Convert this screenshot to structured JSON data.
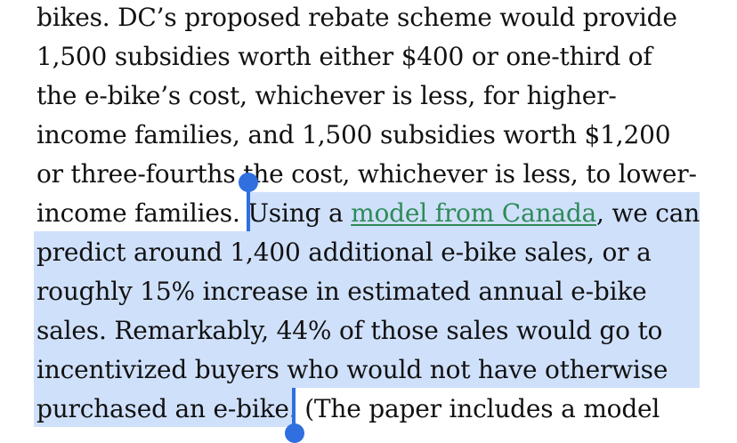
{
  "article": {
    "lines": [
      "bikes. DC’s proposed rebate scheme would provide",
      "1,500 subsidies worth either $400 or one-third of",
      "the e-bike’s cost, whichever is less, for higher-",
      "income families, and 1,500 subsidies worth $1,200",
      "or three-fourths the cost, whichever is less, to lower-"
    ],
    "line6_pre": "income families. ",
    "line6_sel": "Using a ",
    "link_text": "model from Canada",
    "line6_post": ", we can",
    "selected_lines": [
      "predict around 1,400 additional e-bike sales, or a",
      "roughly 15% increase in estimated annual e-bike",
      "sales. Remarkably, 44% of those sales would go to",
      "incentivized buyers who would not have otherwise"
    ],
    "line11_sel": "purchased an e-bike.",
    "line11_post": " (The paper includes a model"
  },
  "colors": {
    "selection": "#cfe0fb",
    "handle": "#2f6fe0",
    "link": "#2e8b57"
  }
}
